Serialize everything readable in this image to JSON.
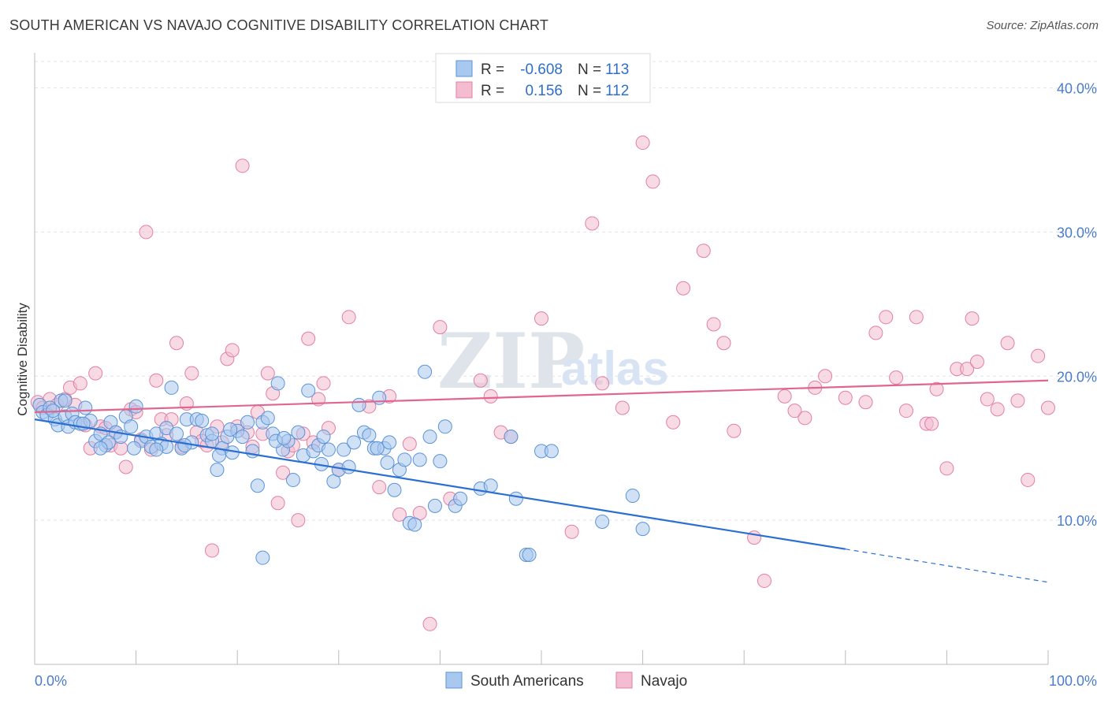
{
  "title": "SOUTH AMERICAN VS NAVAJO COGNITIVE DISABILITY CORRELATION CHART",
  "source": "Source: ZipAtlas.com",
  "watermark": {
    "zip": "ZIP",
    "atlas": "atlas"
  },
  "colors": {
    "south_americans": "#5b93d6",
    "south_americans_fill": "#a9c8ef",
    "navajo": "#e37fa1",
    "navajo_fill": "#f3bcd0",
    "trend_blue": "#2a6fd1",
    "trend_pink": "#e06690",
    "tick_label": "#4a7cc9",
    "grid": "#dfe3ea"
  },
  "legend_top": {
    "rows": [
      {
        "r_label": "R =",
        "r_value": "-0.608",
        "n_label": "N =",
        "n_value": "113"
      },
      {
        "r_label": "R =",
        "r_value": "0.156",
        "n_label": "N =",
        "n_value": "112"
      }
    ]
  },
  "chart_data": {
    "type": "scatter",
    "xlabel": "",
    "ylabel": "Cognitive Disability",
    "xlim": [
      0,
      100
    ],
    "ylim": [
      0,
      42
    ],
    "x_tick_labels": {
      "left": "0.0%",
      "right": "100.0%"
    },
    "y_ticks": [
      10,
      20,
      30,
      40
    ],
    "y_tick_labels": [
      "10.0%",
      "20.0%",
      "30.0%",
      "40.0%"
    ],
    "grid": true,
    "legend": [
      "South Americans",
      "Navajo"
    ],
    "series": [
      {
        "name": "South Americans",
        "r": -0.608,
        "n": 113,
        "trend": {
          "x0": 0,
          "y0": 17.0,
          "x1": 80,
          "y1": 8.0,
          "dash_to_x": 100,
          "dash_to_y": 5.7
        },
        "points": [
          [
            0.5,
            18.0
          ],
          [
            0.8,
            17.5
          ],
          [
            1.2,
            17.3
          ],
          [
            1.5,
            17.8
          ],
          [
            2.0,
            17.0
          ],
          [
            2.3,
            16.6
          ],
          [
            2.6,
            18.3
          ],
          [
            3.0,
            17.2
          ],
          [
            3.3,
            16.5
          ],
          [
            3.7,
            17.4
          ],
          [
            4.0,
            16.8
          ],
          [
            4.5,
            16.7
          ],
          [
            5.0,
            17.8
          ],
          [
            5.5,
            16.9
          ],
          [
            6.0,
            15.5
          ],
          [
            6.5,
            16.0
          ],
          [
            7.0,
            15.2
          ],
          [
            7.5,
            16.8
          ],
          [
            8.0,
            16.1
          ],
          [
            8.5,
            15.8
          ],
          [
            9.0,
            17.2
          ],
          [
            9.5,
            16.5
          ],
          [
            10.0,
            17.9
          ],
          [
            10.5,
            15.5
          ],
          [
            11.0,
            15.8
          ],
          [
            11.5,
            15.1
          ],
          [
            12.0,
            16.0
          ],
          [
            12.5,
            15.3
          ],
          [
            13.0,
            16.4
          ],
          [
            13.5,
            19.2
          ],
          [
            14.0,
            16.0
          ],
          [
            14.5,
            15.0
          ],
          [
            15.0,
            17.0
          ],
          [
            15.5,
            15.4
          ],
          [
            16.0,
            17.0
          ],
          [
            16.5,
            16.9
          ],
          [
            17.0,
            15.9
          ],
          [
            17.5,
            15.5
          ],
          [
            18.0,
            13.5
          ],
          [
            18.5,
            15.0
          ],
          [
            19.0,
            15.8
          ],
          [
            19.5,
            14.7
          ],
          [
            20.0,
            16.2
          ],
          [
            20.5,
            15.8
          ],
          [
            21.0,
            16.8
          ],
          [
            21.5,
            14.8
          ],
          [
            22.0,
            12.4
          ],
          [
            22.5,
            16.8
          ],
          [
            23.0,
            17.1
          ],
          [
            23.5,
            16.0
          ],
          [
            24.0,
            19.5
          ],
          [
            24.5,
            14.9
          ],
          [
            25.0,
            15.5
          ],
          [
            25.5,
            12.8
          ],
          [
            26.0,
            16.1
          ],
          [
            26.5,
            14.5
          ],
          [
            27.0,
            19.0
          ],
          [
            27.5,
            14.8
          ],
          [
            28.0,
            15.2
          ],
          [
            28.5,
            15.8
          ],
          [
            29.0,
            14.9
          ],
          [
            29.5,
            12.7
          ],
          [
            30.0,
            13.5
          ],
          [
            30.5,
            14.9
          ],
          [
            31.0,
            13.7
          ],
          [
            31.5,
            15.4
          ],
          [
            32.0,
            18.0
          ],
          [
            32.5,
            16.1
          ],
          [
            33.0,
            15.9
          ],
          [
            33.5,
            15.0
          ],
          [
            34.0,
            18.5
          ],
          [
            34.5,
            15.0
          ],
          [
            35.0,
            15.4
          ],
          [
            35.5,
            12.1
          ],
          [
            36.0,
            13.5
          ],
          [
            36.5,
            14.2
          ],
          [
            37.0,
            9.8
          ],
          [
            37.5,
            9.7
          ],
          [
            38.0,
            14.2
          ],
          [
            38.5,
            20.3
          ],
          [
            39.0,
            15.8
          ],
          [
            39.5,
            11.0
          ],
          [
            40.0,
            14.1
          ],
          [
            40.5,
            16.5
          ],
          [
            41.5,
            11.0
          ],
          [
            42.0,
            11.5
          ],
          [
            44.0,
            12.2
          ],
          [
            45.0,
            12.4
          ],
          [
            47.0,
            15.8
          ],
          [
            47.5,
            11.5
          ],
          [
            48.5,
            7.6
          ],
          [
            48.8,
            7.6
          ],
          [
            50.0,
            14.8
          ],
          [
            51.0,
            14.8
          ],
          [
            56.0,
            9.9
          ],
          [
            59.0,
            11.7
          ],
          [
            22.5,
            7.4
          ],
          [
            7.3,
            15.4
          ],
          [
            4.8,
            16.7
          ],
          [
            1.8,
            17.6
          ],
          [
            3.0,
            18.3
          ],
          [
            23.8,
            15.5
          ],
          [
            28.3,
            13.9
          ],
          [
            33.8,
            15.0
          ],
          [
            34.8,
            14.0
          ],
          [
            24.6,
            15.7
          ],
          [
            13.0,
            15.1
          ],
          [
            9.8,
            15.0
          ],
          [
            12.0,
            14.9
          ],
          [
            6.5,
            15.0
          ],
          [
            60.0,
            9.4
          ],
          [
            17.5,
            16.0
          ],
          [
            19.3,
            16.3
          ],
          [
            14.8,
            15.2
          ],
          [
            18.2,
            14.5
          ]
        ]
      },
      {
        "name": "Navajo",
        "r": 0.156,
        "n": 112,
        "trend": {
          "x0": 0,
          "y0": 17.5,
          "x1": 100,
          "y1": 19.7
        },
        "points": [
          [
            0.3,
            18.2
          ],
          [
            0.8,
            17.8
          ],
          [
            1.5,
            18.4
          ],
          [
            2.2,
            18.0
          ],
          [
            3.0,
            18.4
          ],
          [
            3.5,
            19.2
          ],
          [
            4.0,
            18.0
          ],
          [
            4.5,
            19.5
          ],
          [
            5.0,
            16.6
          ],
          [
            5.5,
            15.0
          ],
          [
            6.0,
            20.2
          ],
          [
            6.5,
            16.5
          ],
          [
            7.0,
            16.4
          ],
          [
            7.5,
            15.2
          ],
          [
            8.0,
            16.1
          ],
          [
            8.5,
            15.0
          ],
          [
            9.0,
            13.7
          ],
          [
            9.5,
            17.7
          ],
          [
            10.0,
            17.5
          ],
          [
            10.5,
            15.6
          ],
          [
            11.0,
            30.0
          ],
          [
            11.5,
            14.9
          ],
          [
            12.0,
            19.7
          ],
          [
            12.5,
            17.0
          ],
          [
            13.0,
            15.9
          ],
          [
            13.5,
            17.0
          ],
          [
            14.0,
            22.3
          ],
          [
            14.5,
            15.1
          ],
          [
            15.0,
            18.1
          ],
          [
            15.5,
            20.2
          ],
          [
            16.0,
            16.1
          ],
          [
            16.5,
            15.5
          ],
          [
            17.0,
            15.2
          ],
          [
            17.5,
            7.9
          ],
          [
            18.0,
            16.5
          ],
          [
            18.5,
            15.4
          ],
          [
            19.0,
            21.2
          ],
          [
            19.5,
            21.8
          ],
          [
            20.0,
            16.5
          ],
          [
            20.5,
            34.6
          ],
          [
            21.0,
            16.1
          ],
          [
            21.5,
            15.1
          ],
          [
            22.0,
            17.5
          ],
          [
            22.5,
            16.0
          ],
          [
            23.0,
            20.2
          ],
          [
            23.5,
            18.8
          ],
          [
            24.0,
            11.2
          ],
          [
            24.5,
            13.3
          ],
          [
            25.0,
            14.8
          ],
          [
            25.5,
            15.2
          ],
          [
            26.0,
            10.0
          ],
          [
            26.5,
            16.0
          ],
          [
            27.0,
            22.6
          ],
          [
            27.5,
            15.4
          ],
          [
            28.0,
            18.4
          ],
          [
            28.5,
            19.5
          ],
          [
            29.0,
            16.4
          ],
          [
            30.0,
            13.5
          ],
          [
            31.0,
            24.1
          ],
          [
            33.0,
            17.9
          ],
          [
            34.0,
            12.3
          ],
          [
            35.0,
            18.6
          ],
          [
            36.0,
            10.4
          ],
          [
            37.0,
            15.3
          ],
          [
            38.0,
            10.5
          ],
          [
            39.0,
            2.8
          ],
          [
            40.0,
            23.4
          ],
          [
            41.0,
            11.5
          ],
          [
            44.0,
            19.7
          ],
          [
            45.0,
            18.6
          ],
          [
            46.0,
            16.1
          ],
          [
            47.0,
            15.8
          ],
          [
            50.0,
            24.0
          ],
          [
            53.0,
            9.2
          ],
          [
            55.0,
            30.6
          ],
          [
            56.0,
            19.5
          ],
          [
            58.0,
            17.8
          ],
          [
            60.0,
            36.2
          ],
          [
            61.0,
            33.5
          ],
          [
            63.0,
            16.8
          ],
          [
            64.0,
            26.1
          ],
          [
            66.0,
            28.7
          ],
          [
            67.0,
            23.6
          ],
          [
            68.0,
            22.3
          ],
          [
            69.0,
            16.2
          ],
          [
            71.0,
            8.8
          ],
          [
            72.0,
            5.8
          ],
          [
            74.0,
            18.6
          ],
          [
            75.0,
            17.6
          ],
          [
            76.0,
            17.1
          ],
          [
            77.0,
            19.2
          ],
          [
            78.0,
            20.0
          ],
          [
            80.0,
            18.5
          ],
          [
            82.0,
            18.2
          ],
          [
            83.0,
            23.0
          ],
          [
            84.0,
            24.1
          ],
          [
            85.0,
            19.9
          ],
          [
            86.0,
            17.6
          ],
          [
            87.0,
            24.1
          ],
          [
            88.0,
            16.7
          ],
          [
            89.0,
            19.1
          ],
          [
            90.0,
            13.6
          ],
          [
            91.0,
            20.5
          ],
          [
            92.0,
            20.5
          ],
          [
            93.0,
            21.0
          ],
          [
            94.0,
            18.4
          ],
          [
            95.0,
            17.7
          ],
          [
            96.0,
            22.3
          ],
          [
            97.0,
            18.3
          ],
          [
            98.0,
            12.8
          ],
          [
            99.0,
            21.4
          ],
          [
            100.0,
            17.8
          ],
          [
            92.5,
            24.0
          ],
          [
            88.5,
            16.7
          ]
        ]
      }
    ]
  },
  "legend_bottom": {
    "items": [
      {
        "label": "South Americans"
      },
      {
        "label": "Navajo"
      }
    ]
  }
}
